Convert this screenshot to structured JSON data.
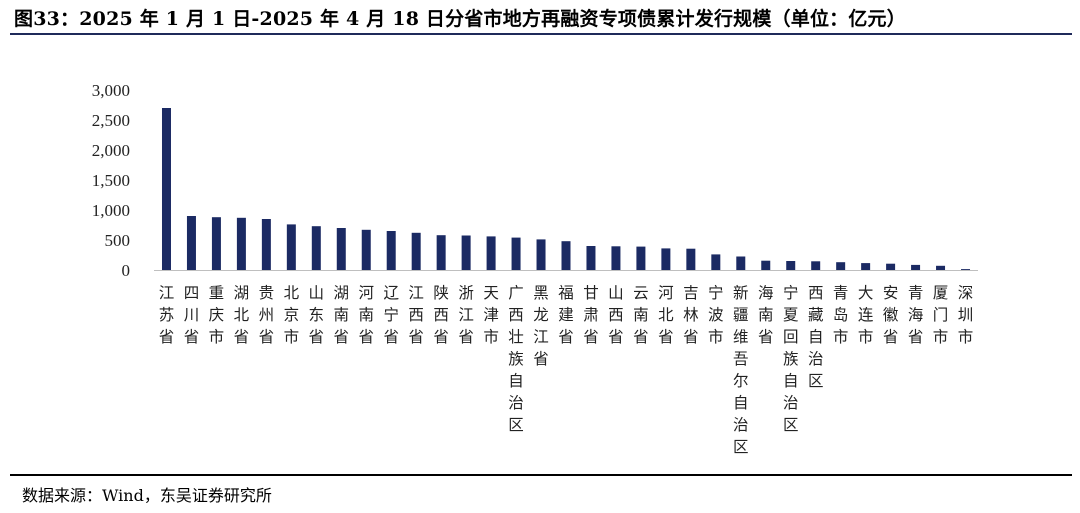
{
  "title": "图33：2025 年 1 月 1 日-2025 年 4 月 18 日分省市地方再融资专项债累计发行规模（单位：亿元）",
  "source": "数据来源：Wind，东吴证券研究所",
  "colors": {
    "bar": "#1b2a63",
    "rule": "#1f2a5a"
  },
  "chart_data": {
    "type": "bar",
    "categories": [
      "江苏省",
      "四川省",
      "重庆市",
      "湖北省",
      "贵州省",
      "北京市",
      "山东省",
      "湖南省",
      "河南省",
      "辽宁省",
      "江西省",
      "陕西省",
      "浙江省",
      "天津市",
      "广西壮族自治区",
      "黑龙江省",
      "福建省",
      "甘肃省",
      "山西省",
      "云南省",
      "河北省",
      "吉林省",
      "宁波市",
      "新疆维吾尔自治区",
      "海南省",
      "宁夏回族自治区",
      "西藏自治区",
      "青岛市",
      "大连市",
      "安徽省",
      "青海省",
      "厦门市",
      "深圳市"
    ],
    "values": [
      2700,
      900,
      880,
      870,
      850,
      760,
      730,
      700,
      670,
      650,
      620,
      580,
      575,
      560,
      540,
      510,
      480,
      400,
      395,
      390,
      360,
      355,
      260,
      225,
      155,
      150,
      145,
      130,
      115,
      105,
      85,
      70,
      15
    ],
    "ylim": [
      0,
      3000
    ],
    "yticks": [
      "0",
      "500",
      "1,000",
      "1,500",
      "2,000",
      "2,500",
      "3,000"
    ],
    "grid": false,
    "legend": "none"
  }
}
